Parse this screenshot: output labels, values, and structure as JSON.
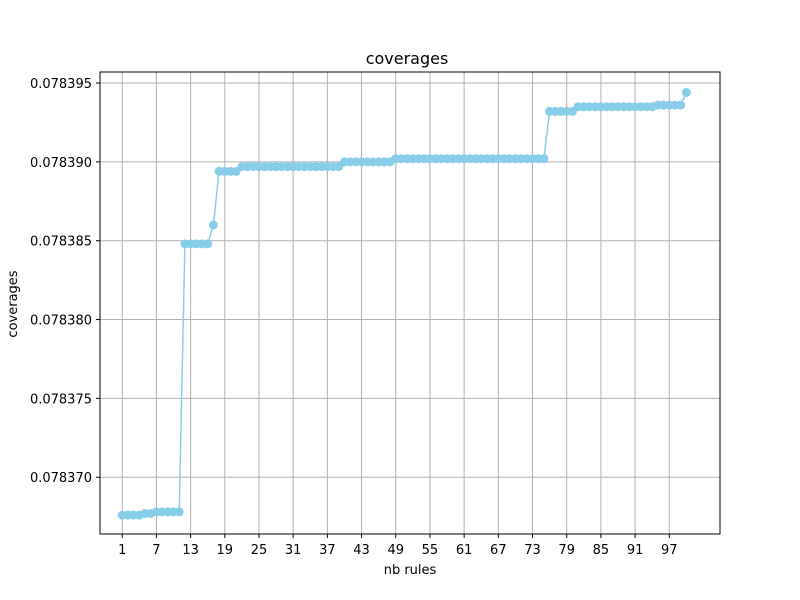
{
  "chart_data": {
    "type": "line",
    "title": "coverages",
    "xlabel": "nb rules",
    "ylabel": "coverages",
    "grid": true,
    "color": "#87ceeb",
    "xlim": [
      -2.9,
      105.9
    ],
    "ylim": [
      0.0783664,
      0.0783957
    ],
    "xticks": [
      1,
      7,
      13,
      19,
      25,
      31,
      37,
      43,
      49,
      55,
      61,
      67,
      73,
      79,
      85,
      91,
      97
    ],
    "yticks": [
      0.07837,
      0.078375,
      0.07838,
      0.078385,
      0.07839,
      0.078395
    ],
    "ytick_labels": [
      "0.078370",
      "0.078375",
      "0.078380",
      "0.078385",
      "0.078390",
      "0.078395"
    ],
    "x": [
      1,
      2,
      3,
      4,
      5,
      6,
      7,
      8,
      9,
      10,
      11,
      12,
      13,
      14,
      15,
      16,
      17,
      18,
      19,
      20,
      21,
      22,
      23,
      24,
      25,
      26,
      27,
      28,
      29,
      30,
      31,
      32,
      33,
      34,
      35,
      36,
      37,
      38,
      39,
      40,
      41,
      42,
      43,
      44,
      45,
      46,
      47,
      48,
      49,
      50,
      51,
      52,
      53,
      54,
      55,
      56,
      57,
      58,
      59,
      60,
      61,
      62,
      63,
      64,
      65,
      66,
      67,
      68,
      69,
      70,
      71,
      72,
      73,
      74,
      75,
      76,
      77,
      78,
      79,
      80,
      81,
      82,
      83,
      84,
      85,
      86,
      87,
      88,
      89,
      90,
      91,
      92,
      93,
      94,
      95,
      96,
      97,
      98,
      99,
      100
    ],
    "y": [
      0.0783676,
      0.0783676,
      0.0783676,
      0.0783676,
      0.0783677,
      0.0783677,
      0.0783678,
      0.0783678,
      0.0783678,
      0.0783678,
      0.0783678,
      0.0783848,
      0.0783848,
      0.0783848,
      0.0783848,
      0.0783848,
      0.078386,
      0.0783894,
      0.0783894,
      0.0783894,
      0.0783894,
      0.0783897,
      0.0783897,
      0.0783897,
      0.0783897,
      0.0783897,
      0.0783897,
      0.0783897,
      0.0783897,
      0.0783897,
      0.0783897,
      0.0783897,
      0.0783897,
      0.0783897,
      0.0783897,
      0.0783897,
      0.0783897,
      0.0783897,
      0.0783897,
      0.07839,
      0.07839,
      0.07839,
      0.07839,
      0.07839,
      0.07839,
      0.07839,
      0.07839,
      0.07839,
      0.0783902,
      0.0783902,
      0.0783902,
      0.0783902,
      0.0783902,
      0.0783902,
      0.0783902,
      0.0783902,
      0.0783902,
      0.0783902,
      0.0783902,
      0.0783902,
      0.0783902,
      0.0783902,
      0.0783902,
      0.0783902,
      0.0783902,
      0.0783902,
      0.0783902,
      0.0783902,
      0.0783902,
      0.0783902,
      0.0783902,
      0.0783902,
      0.0783902,
      0.0783902,
      0.0783902,
      0.0783932,
      0.0783932,
      0.0783932,
      0.0783932,
      0.0783932,
      0.0783935,
      0.0783935,
      0.0783935,
      0.0783935,
      0.0783935,
      0.0783935,
      0.0783935,
      0.0783935,
      0.0783935,
      0.0783935,
      0.0783935,
      0.0783935,
      0.0783935,
      0.0783935,
      0.0783936,
      0.0783936,
      0.0783936,
      0.0783936,
      0.0783936,
      0.0783944
    ]
  }
}
